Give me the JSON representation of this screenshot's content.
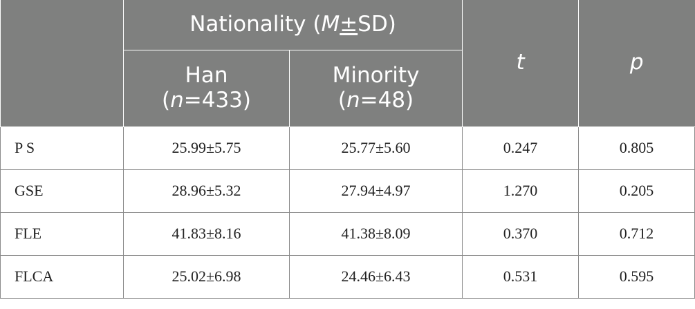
{
  "header": {
    "group_label_prefix": "Nationality (",
    "group_label_M": "M",
    "group_label_pm": "±",
    "group_label_suffix": "SD)",
    "col_han_name": "Han",
    "col_han_n_prefix": "(",
    "col_han_n_var": "n",
    "col_han_n_value": "=433)",
    "col_minority_name": "Minority",
    "col_minority_n_prefix": "(",
    "col_minority_n_var": "n",
    "col_minority_n_value": "=48)",
    "col_t": "t",
    "col_p": "p"
  },
  "rows": [
    {
      "label": "P S",
      "han": "25.99±5.75",
      "minority": "25.77±5.60",
      "t": "0.247",
      "p": "0.805"
    },
    {
      "label": "GSE",
      "han": "28.96±5.32",
      "minority": "27.94±4.97",
      "t": "1.270",
      "p": "0.205"
    },
    {
      "label": "FLE",
      "han": "41.83±8.16",
      "minority": "41.38±8.09",
      "t": "0.370",
      "p": "0.712"
    },
    {
      "label": "FLCA",
      "han": "25.02±6.98",
      "minority": "24.46±6.43",
      "t": "0.531",
      "p": "0.595"
    }
  ]
}
